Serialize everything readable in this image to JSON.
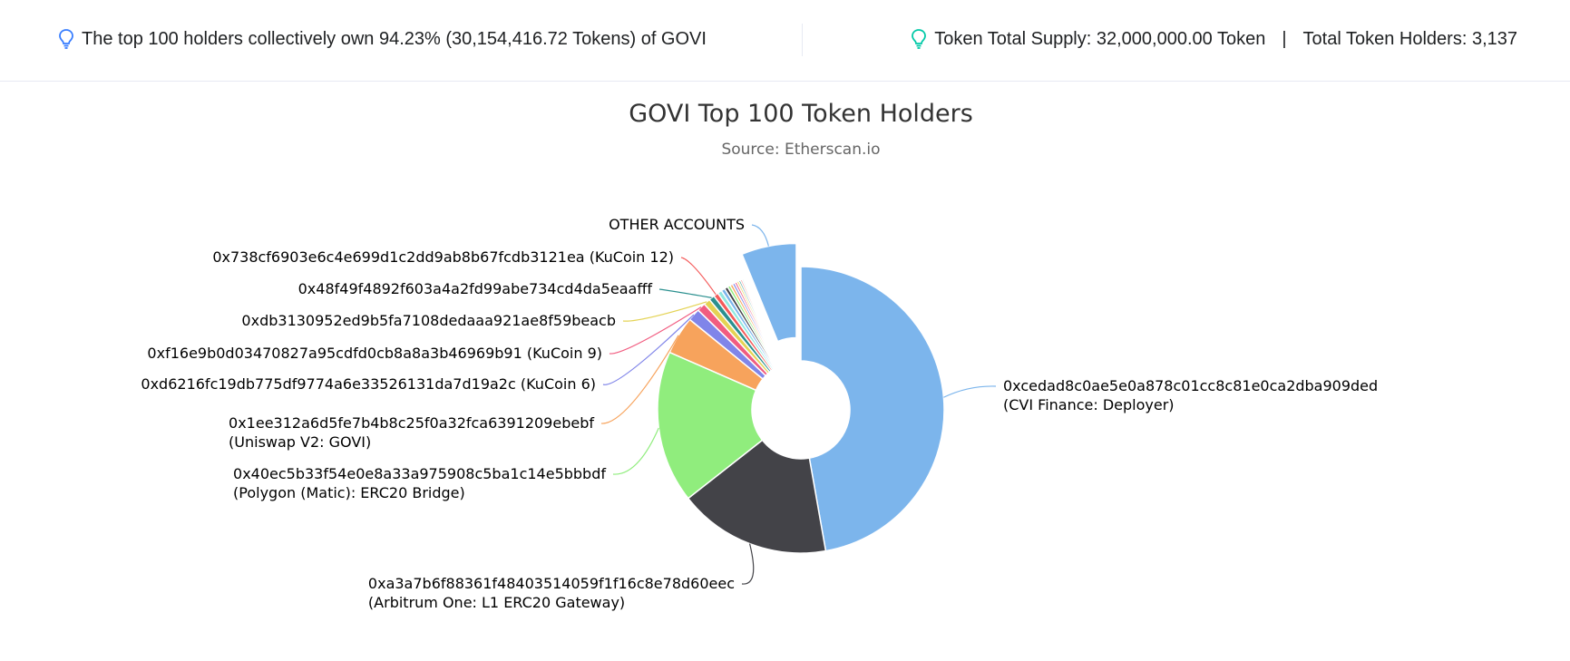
{
  "summary": {
    "top_holders_text": "The top 100 holders collectively own 94.23% (30,154,416.72 Tokens) of GOVI",
    "total_supply_text": "Token Total Supply: 32,000,000.00 Token",
    "separator": "|",
    "total_holders_text": "Total Token Holders: 3,137",
    "icon_left": "lightbulb-icon",
    "icon_right": "lightbulb-icon",
    "icon_left_color": "#377dff",
    "icon_right_color": "#00c9a7"
  },
  "chart_data": {
    "type": "pie",
    "variant": "donut",
    "title": "GOVI Top 100 Token Holders",
    "subtitle": "Source: Etherscan.io",
    "unit": "percent",
    "slices": [
      {
        "label": "0xcedad8c0ae5e0a878c01cc8c81e0ca2dba909ded",
        "sublabel": "(CVI Finance: Deployer)",
        "value": 44.0,
        "color": "#7cb5ec"
      },
      {
        "label": "0xa3a7b6f88361f48403514059f1f16c8e78d60eec",
        "sublabel": "(Arbitrum One: L1 ERC20 Gateway)",
        "value": 16.0,
        "color": "#434348"
      },
      {
        "label": "0x40ec5b33f54e0e8a33a975908c5ba1c14e5bbbdf",
        "sublabel": "(Polygon (Matic): ERC20 Bridge)",
        "value": 16.0,
        "color": "#90ed7d"
      },
      {
        "label": "0x1ee312a6d5fe7b4b8c25f0a32fca6391209ebebf",
        "sublabel": "(Uniswap V2: GOVI)",
        "value": 4.0,
        "color": "#f7a35c"
      },
      {
        "label": "0xd6216fc19db775df9774a6e33526131da7d19a2c (KuCoin 6)",
        "sublabel": "",
        "value": 1.3,
        "color": "#8085e9"
      },
      {
        "label": "0xf16e9b0d03470827a95cdfd0cb8a8a3b46969b91 (KuCoin 9)",
        "sublabel": "",
        "value": 0.9,
        "color": "#f15c80"
      },
      {
        "label": "0xdb3130952ed9b5fa7108dedaaa921ae8f59beacb",
        "sublabel": "",
        "value": 0.7,
        "color": "#e4d354"
      },
      {
        "label": "0x48f49f4892f603a4a2fd99abe734cd4da5eaafff",
        "sublabel": "",
        "value": 0.6,
        "color": "#2b908f"
      },
      {
        "label": "0x738cf6903e6c4e699d1c2dd9ab8b67fcdb3121ea (KuCoin 12)",
        "sublabel": "",
        "value": 0.5,
        "color": "#f45b5b"
      },
      {
        "label": "",
        "sublabel": "",
        "value": 0.45,
        "color": "#91e8e1"
      },
      {
        "label": "",
        "sublabel": "",
        "value": 0.4,
        "color": "#7cb5ec"
      },
      {
        "label": "",
        "sublabel": "",
        "value": 0.35,
        "color": "#434348"
      },
      {
        "label": "",
        "sublabel": "",
        "value": 0.3,
        "color": "#90ed7d"
      },
      {
        "label": "",
        "sublabel": "",
        "value": 0.28,
        "color": "#f7a35c"
      },
      {
        "label": "",
        "sublabel": "",
        "value": 0.26,
        "color": "#8085e9"
      },
      {
        "label": "",
        "sublabel": "",
        "value": 0.24,
        "color": "#f15c80"
      },
      {
        "label": "",
        "sublabel": "",
        "value": 0.22,
        "color": "#e4d354"
      },
      {
        "label": "",
        "sublabel": "",
        "value": 0.2,
        "color": "#2b908f"
      },
      {
        "label": "",
        "sublabel": "",
        "value": 0.18,
        "color": "#f45b5b"
      },
      {
        "label": "",
        "sublabel": "",
        "value": 0.16,
        "color": "#91e8e1"
      },
      {
        "label": "",
        "sublabel": "",
        "value": 0.14,
        "color": "#7cb5ec"
      },
      {
        "label": "",
        "sublabel": "",
        "value": 0.12,
        "color": "#434348"
      },
      {
        "label": "",
        "sublabel": "",
        "value": 0.1,
        "color": "#90ed7d"
      },
      {
        "label": "OTHER ACCOUNTS",
        "sublabel": "",
        "value": 5.77,
        "color": "#7cb5ec",
        "sliced": true
      }
    ],
    "legend": "none"
  }
}
